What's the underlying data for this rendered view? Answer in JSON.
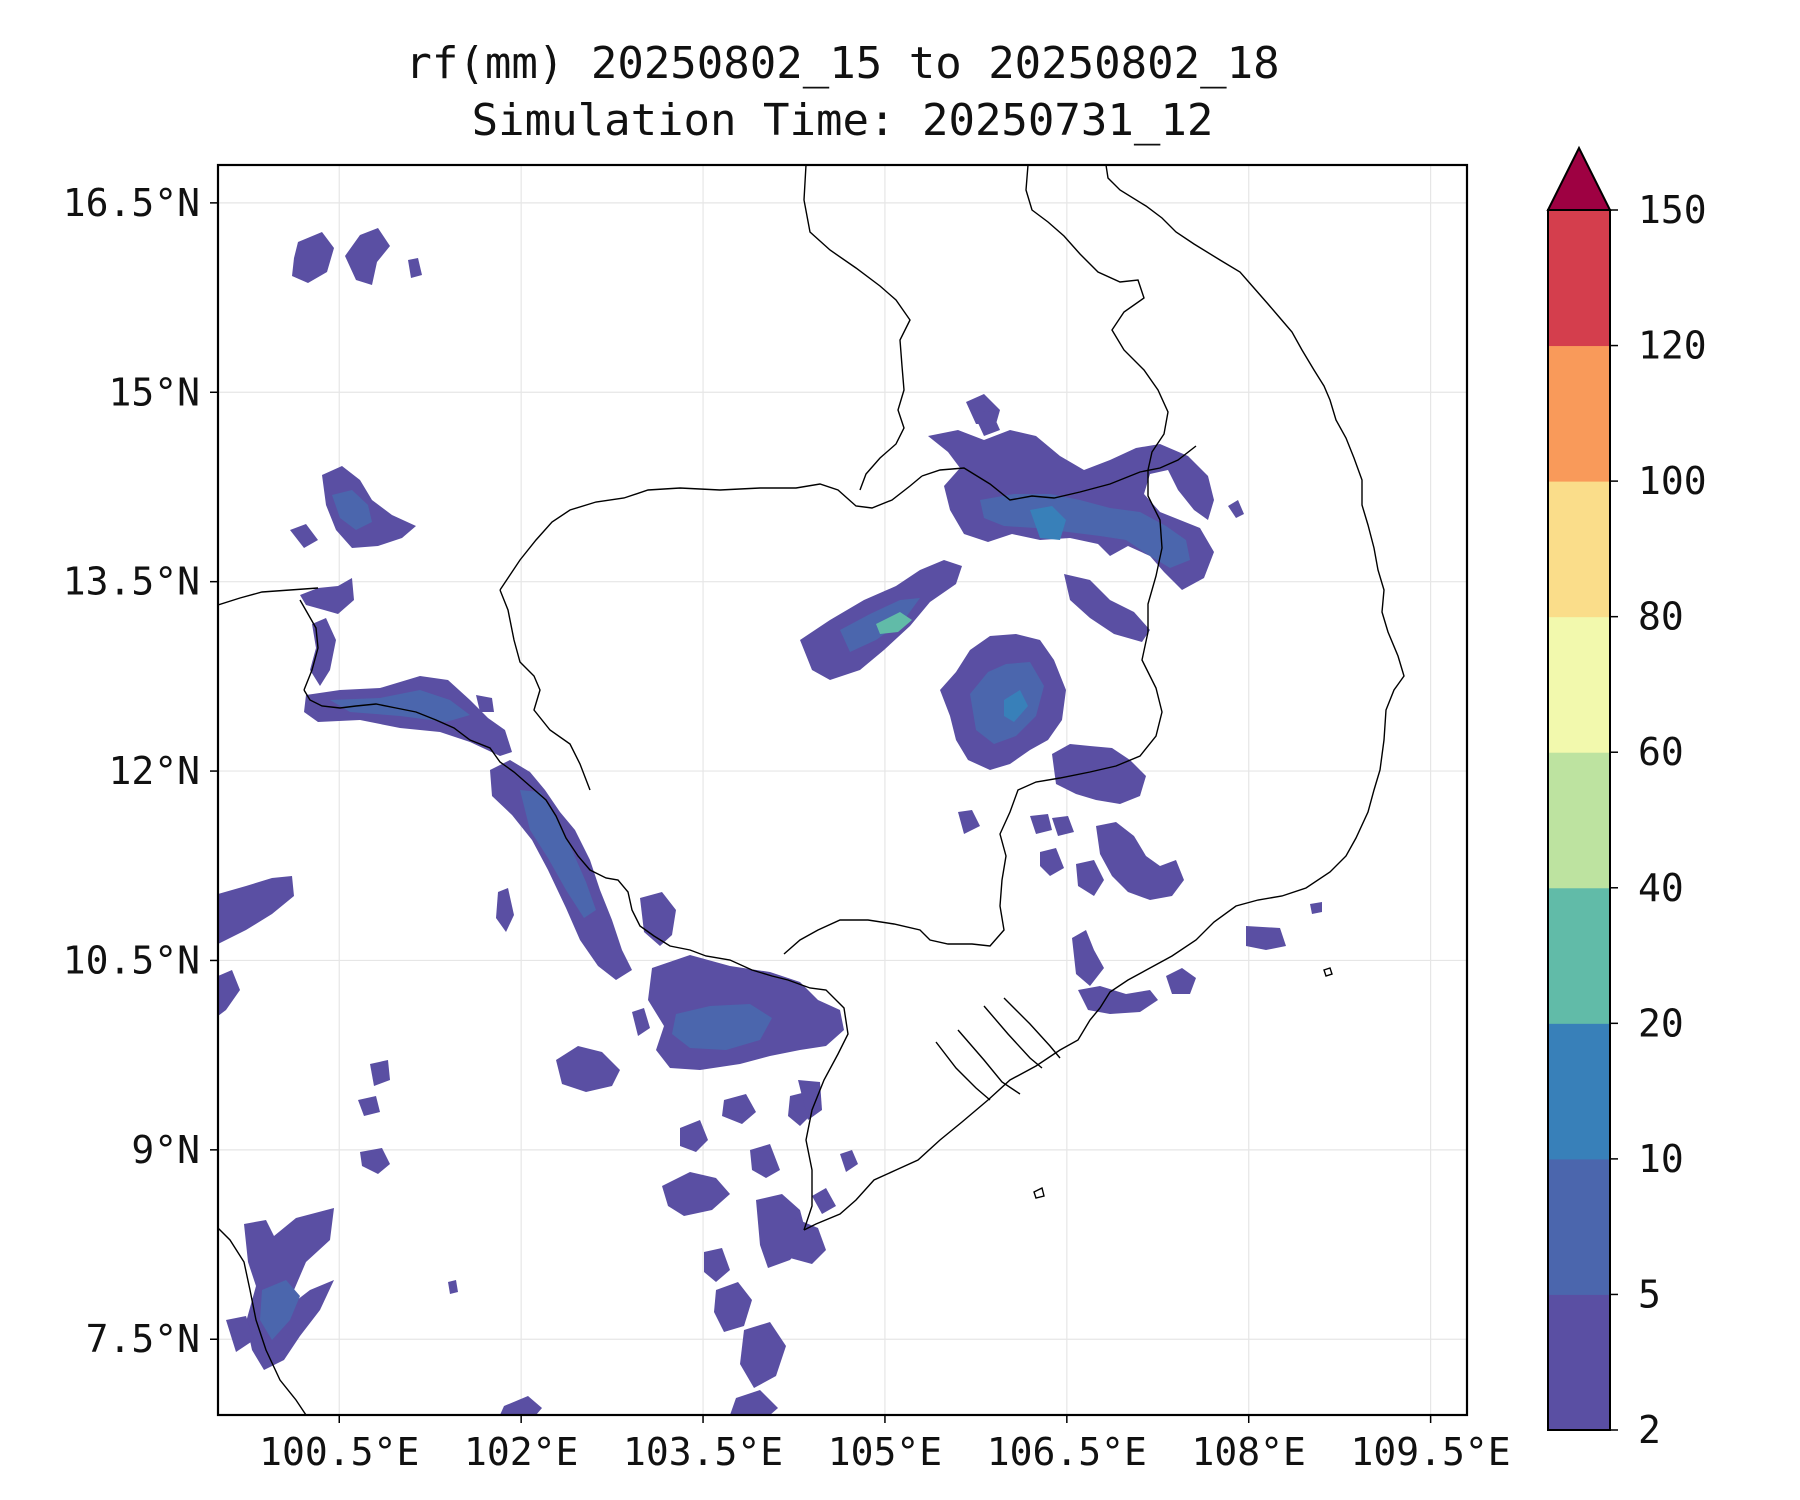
{
  "title": "rf(mm) 20250802_15 to 20250802_18",
  "subtitle": "Simulation Time: 20250731_12",
  "map": {
    "region": "Cambodia / southern Vietnam / Gulf of Thailand",
    "lon_range": [
      99.5,
      109.8
    ],
    "lat_range": [
      6.9,
      16.8
    ],
    "gridlines": true,
    "lon_ticks": [
      "100.5°E",
      "102°E",
      "103.5°E",
      "105°E",
      "106.5°E",
      "108°E",
      "109.5°E"
    ],
    "lon_tick_values": [
      100.5,
      102,
      103.5,
      105,
      106.5,
      108,
      109.5
    ],
    "lat_ticks": [
      "16.5°N",
      "15°N",
      "13.5°N",
      "12°N",
      "10.5°N",
      "9°N",
      "7.5°N"
    ],
    "lat_tick_values": [
      16.5,
      15,
      13.5,
      12,
      10.5,
      9,
      7.5
    ]
  },
  "colorbar": {
    "levels": [
      "2",
      "5",
      "10",
      "20",
      "40",
      "60",
      "80",
      "100",
      "120",
      "150"
    ],
    "colors": [
      "#5a4fa3",
      "#4b66ad",
      "#3880b9",
      "#61bba8",
      "#bde3a0",
      "#f2f9ad",
      "#fadd8a",
      "#f99a5a",
      "#d43e4d"
    ],
    "extend_color": "#9e0142",
    "extend": "max"
  },
  "colors": {
    "rain_light": "#5a4fa3",
    "rain_moderate": "#4b66ad",
    "rain_heavy": "#3880b9",
    "rain_very_heavy": "#61bba8"
  }
}
